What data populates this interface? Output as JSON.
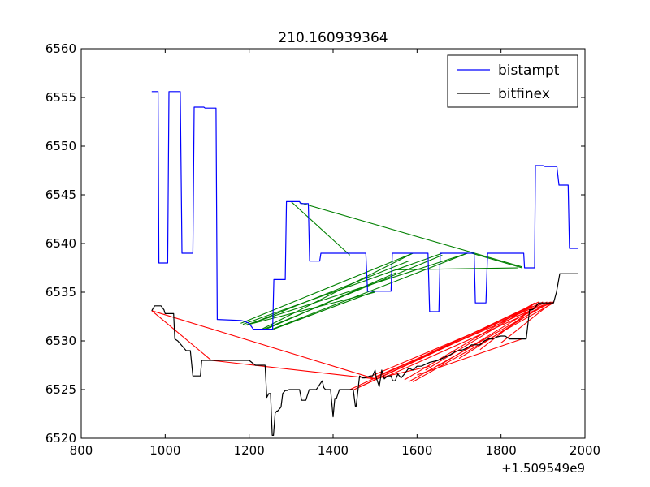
{
  "chart_data": {
    "type": "line",
    "title": "210.160939364",
    "xlabel": "",
    "ylabel": "",
    "xlim": [
      800,
      2000
    ],
    "ylim": [
      6520,
      6560
    ],
    "x_offset_label": "+1.509549e9",
    "grid": false,
    "legend_position": "top-right",
    "x_ticks": [
      {
        "value": 800,
        "label": "800"
      },
      {
        "value": 1000,
        "label": "1000"
      },
      {
        "value": 1200,
        "label": "1200"
      },
      {
        "value": 1400,
        "label": "1400"
      },
      {
        "value": 1600,
        "label": "1600"
      },
      {
        "value": 1800,
        "label": "1800"
      },
      {
        "value": 2000,
        "label": "2000"
      }
    ],
    "y_ticks": [
      {
        "value": 6520,
        "label": "6520"
      },
      {
        "value": 6525,
        "label": "6525"
      },
      {
        "value": 6530,
        "label": "6530"
      },
      {
        "value": 6535,
        "label": "6535"
      },
      {
        "value": 6540,
        "label": "6540"
      },
      {
        "value": 6545,
        "label": "6545"
      },
      {
        "value": 6550,
        "label": "6550"
      },
      {
        "value": 6555,
        "label": "6555"
      },
      {
        "value": 6560,
        "label": "6560"
      }
    ],
    "series": [
      {
        "name": "bistampt",
        "color": "#0000ff",
        "x": [
          968,
          983,
          985,
          1006,
          1009,
          1036,
          1040,
          1066,
          1069,
          1092,
          1095,
          1121,
          1124,
          1180,
          1190,
          1200,
          1210,
          1256,
          1259,
          1286,
          1289,
          1320,
          1323,
          1341,
          1344,
          1368,
          1371,
          1478,
          1482,
          1538,
          1541,
          1626,
          1630,
          1652,
          1655,
          1703,
          1705,
          1736,
          1739,
          1764,
          1768,
          1854,
          1856,
          1880,
          1882,
          1900,
          1905,
          1933,
          1938,
          1960,
          1963,
          1983
        ],
        "y": [
          6555.6,
          6555.6,
          6538.0,
          6538.0,
          6555.6,
          6555.6,
          6539.0,
          6539.0,
          6554.0,
          6554.0,
          6553.9,
          6553.9,
          6532.2,
          6532.1,
          6532.0,
          6531.8,
          6531.2,
          6531.2,
          6536.3,
          6536.3,
          6544.3,
          6544.3,
          6544.1,
          6544.1,
          6538.2,
          6538.2,
          6539.0,
          6539.0,
          6535.1,
          6535.1,
          6539.0,
          6539.0,
          6533.0,
          6533.0,
          6539.0,
          6539.0,
          6539.0,
          6539.0,
          6533.9,
          6533.9,
          6539.0,
          6539.0,
          6537.5,
          6537.5,
          6548.0,
          6548.0,
          6547.9,
          6547.9,
          6546.0,
          6546.0,
          6539.5,
          6539.5
        ]
      },
      {
        "name": "bitfinex",
        "color": "#000000",
        "x": [
          968,
          975,
          990,
          997,
          1000,
          1010,
          1020,
          1023,
          1030,
          1040,
          1050,
          1060,
          1066,
          1070,
          1084,
          1087,
          1110,
          1140,
          1200,
          1215,
          1218,
          1238,
          1242,
          1247,
          1251,
          1255,
          1258,
          1262,
          1266,
          1268,
          1276,
          1280,
          1286,
          1290,
          1295,
          1310,
          1320,
          1325,
          1335,
          1343,
          1350,
          1360,
          1374,
          1378,
          1382,
          1386,
          1394,
          1400,
          1404,
          1408,
          1415,
          1424,
          1428,
          1448,
          1453,
          1455,
          1463,
          1470,
          1476,
          1488,
          1494,
          1500,
          1503,
          1510,
          1516,
          1522,
          1530,
          1534,
          1538,
          1542,
          1548,
          1554,
          1562,
          1570,
          1580,
          1590,
          1600,
          1610,
          1620,
          1630,
          1640,
          1650,
          1660,
          1670,
          1680,
          1690,
          1700,
          1710,
          1720,
          1730,
          1740,
          1750,
          1760,
          1770,
          1780,
          1790,
          1800,
          1810,
          1820,
          1830,
          1840,
          1850,
          1860,
          1868,
          1875,
          1880,
          1890,
          1900,
          1910,
          1918,
          1925,
          1932,
          1940,
          1950,
          1970,
          1983
        ],
        "y": [
          6533.1,
          6533.6,
          6533.6,
          6533.2,
          6532.8,
          6532.8,
          6532.8,
          6530.2,
          6530.0,
          6529.5,
          6529.0,
          6529.0,
          6526.4,
          6526.4,
          6526.4,
          6528.0,
          6528.0,
          6528.0,
          6528.0,
          6527.5,
          6527.5,
          6527.5,
          6524.2,
          6524.6,
          6524.6,
          6520.3,
          6520.3,
          6522.6,
          6522.8,
          6522.8,
          6523.2,
          6524.6,
          6524.9,
          6524.9,
          6525.0,
          6525.0,
          6525.0,
          6523.9,
          6523.9,
          6525.0,
          6525.0,
          6525.0,
          6525.9,
          6525.2,
          6525.0,
          6525.0,
          6525.0,
          6522.2,
          6524.1,
          6524.1,
          6525.0,
          6525.0,
          6525.0,
          6525.0,
          6523.3,
          6523.3,
          6526.4,
          6526.2,
          6526.2,
          6526.4,
          6526.4,
          6527.0,
          6526.2,
          6525.3,
          6527.0,
          6526.1,
          6526.4,
          6526.4,
          6526.4,
          6525.9,
          6525.9,
          6526.6,
          6526.2,
          6526.6,
          6527.2,
          6527.0,
          6527.4,
          6527.4,
          6527.6,
          6527.8,
          6527.9,
          6528.0,
          6528.2,
          6528.4,
          6528.6,
          6528.9,
          6529.0,
          6529.1,
          6529.3,
          6529.6,
          6529.6,
          6529.6,
          6530.0,
          6530.2,
          6530.2,
          6530.4,
          6530.5,
          6530.5,
          6530.2,
          6530.2,
          6530.2,
          6530.2,
          6530.2,
          6533.2,
          6533.2,
          6533.4,
          6533.9,
          6533.9,
          6533.9,
          6533.9,
          6533.9,
          6535.0,
          6536.9,
          6536.9,
          6536.9,
          6536.9
        ]
      }
    ],
    "green_connections": [
      {
        "x1": 1300,
        "y1": 6544.3,
        "x2": 1440,
        "y2": 6538.8
      },
      {
        "x1": 1320,
        "y1": 6544.2,
        "x2": 1850,
        "y2": 6537.6
      },
      {
        "x1": 1180,
        "y1": 6531.8,
        "x2": 1590,
        "y2": 6539.0
      },
      {
        "x1": 1185,
        "y1": 6531.7,
        "x2": 1660,
        "y2": 6539.0
      },
      {
        "x1": 1190,
        "y1": 6531.6,
        "x2": 1720,
        "y2": 6539.0
      },
      {
        "x1": 1195,
        "y1": 6531.6,
        "x2": 1580,
        "y2": 6538.2
      },
      {
        "x1": 1200,
        "y1": 6531.7,
        "x2": 1500,
        "y2": 6535.0
      },
      {
        "x1": 1230,
        "y1": 6531.2,
        "x2": 1590,
        "y2": 6539.0
      },
      {
        "x1": 1235,
        "y1": 6531.2,
        "x2": 1660,
        "y2": 6538.8
      },
      {
        "x1": 1240,
        "y1": 6531.2,
        "x2": 1550,
        "y2": 6537.0
      },
      {
        "x1": 1255,
        "y1": 6531.2,
        "x2": 1720,
        "y2": 6539.0
      },
      {
        "x1": 1258,
        "y1": 6531.2,
        "x2": 1500,
        "y2": 6535.1
      },
      {
        "x1": 1730,
        "y1": 6539.0,
        "x2": 1850,
        "y2": 6537.5
      },
      {
        "x1": 1550,
        "y1": 6537.3,
        "x2": 1840,
        "y2": 6537.5
      }
    ],
    "red_connections": [
      {
        "x1": 968,
        "y1": 6533.1,
        "x2": 1500,
        "y2": 6526.1
      },
      {
        "x1": 968,
        "y1": 6533.1,
        "x2": 1110,
        "y2": 6528.0
      },
      {
        "x1": 1110,
        "y1": 6528.0,
        "x2": 1500,
        "y2": 6526.1
      },
      {
        "x1": 1440,
        "y1": 6525.0,
        "x2": 1875,
        "y2": 6533.6
      },
      {
        "x1": 1450,
        "y1": 6525.0,
        "x2": 1890,
        "y2": 6534.0
      },
      {
        "x1": 1460,
        "y1": 6525.2,
        "x2": 1900,
        "y2": 6534.0
      },
      {
        "x1": 1480,
        "y1": 6526.2,
        "x2": 1910,
        "y2": 6534.0
      },
      {
        "x1": 1500,
        "y1": 6526.3,
        "x2": 1918,
        "y2": 6534.0
      },
      {
        "x1": 1520,
        "y1": 6526.2,
        "x2": 1925,
        "y2": 6534.0
      },
      {
        "x1": 1570,
        "y1": 6526.0,
        "x2": 1880,
        "y2": 6533.9
      },
      {
        "x1": 1580,
        "y1": 6525.8,
        "x2": 1920,
        "y2": 6534.0
      },
      {
        "x1": 1590,
        "y1": 6525.8,
        "x2": 1925,
        "y2": 6533.9
      },
      {
        "x1": 1600,
        "y1": 6526.5,
        "x2": 1850,
        "y2": 6530.2
      },
      {
        "x1": 1620,
        "y1": 6527.0,
        "x2": 1870,
        "y2": 6533.5
      },
      {
        "x1": 1650,
        "y1": 6527.4,
        "x2": 1900,
        "y2": 6533.9
      },
      {
        "x1": 1700,
        "y1": 6528.2,
        "x2": 1910,
        "y2": 6533.9
      },
      {
        "x1": 1750,
        "y1": 6529.1,
        "x2": 1890,
        "y2": 6533.8
      },
      {
        "x1": 1800,
        "y1": 6529.8,
        "x2": 1920,
        "y2": 6533.9
      },
      {
        "x1": 1500,
        "y1": 6526.1,
        "x2": 1630,
        "y2": 6527.4
      }
    ]
  }
}
